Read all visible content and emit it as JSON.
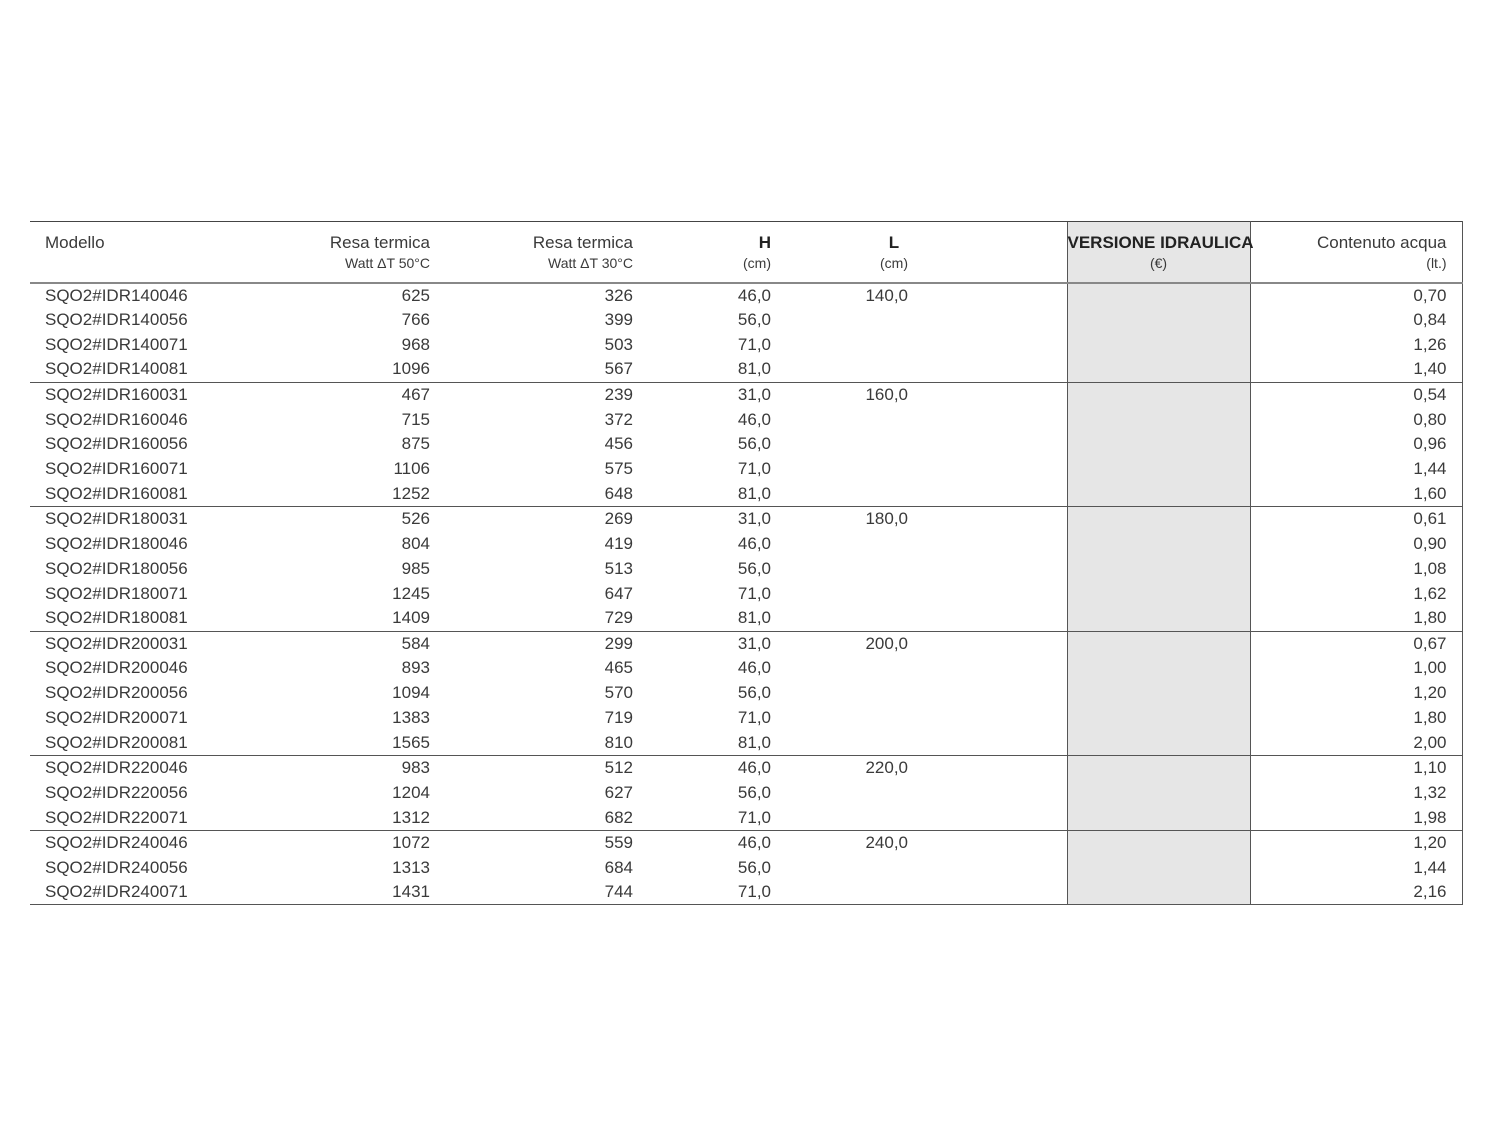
{
  "headers": {
    "model": "Modello",
    "resa50": {
      "title": "Resa termica",
      "sub": "Watt ΔT 50°C"
    },
    "resa30": {
      "title": "Resa termica",
      "sub": "Watt ΔT 30°C"
    },
    "h": {
      "title": "H",
      "sub": "(cm)"
    },
    "l": {
      "title": "L",
      "sub": "(cm)"
    },
    "versione": {
      "title": "VERSIONE IDRAULICA",
      "sub": "(€)"
    },
    "contenuto": {
      "title": "Contenuto acqua",
      "sub": "(lt.)"
    }
  },
  "colors": {
    "highlight_column": "#e6e6e6"
  },
  "groups": [
    {
      "l": "140,0",
      "rows": [
        [
          "SQO2#IDR140046",
          "625",
          "326",
          "46,0",
          "0,70"
        ],
        [
          "SQO2#IDR140056",
          "766",
          "399",
          "56,0",
          "0,84"
        ],
        [
          "SQO2#IDR140071",
          "968",
          "503",
          "71,0",
          "1,26"
        ],
        [
          "SQO2#IDR140081",
          "1096",
          "567",
          "81,0",
          "1,40"
        ]
      ]
    },
    {
      "l": "160,0",
      "rows": [
        [
          "SQO2#IDR160031",
          "467",
          "239",
          "31,0",
          "0,54"
        ],
        [
          "SQO2#IDR160046",
          "715",
          "372",
          "46,0",
          "0,80"
        ],
        [
          "SQO2#IDR160056",
          "875",
          "456",
          "56,0",
          "0,96"
        ],
        [
          "SQO2#IDR160071",
          "1106",
          "575",
          "71,0",
          "1,44"
        ],
        [
          "SQO2#IDR160081",
          "1252",
          "648",
          "81,0",
          "1,60"
        ]
      ]
    },
    {
      "l": "180,0",
      "rows": [
        [
          "SQO2#IDR180031",
          "526",
          "269",
          "31,0",
          "0,61"
        ],
        [
          "SQO2#IDR180046",
          "804",
          "419",
          "46,0",
          "0,90"
        ],
        [
          "SQO2#IDR180056",
          "985",
          "513",
          "56,0",
          "1,08"
        ],
        [
          "SQO2#IDR180071",
          "1245",
          "647",
          "71,0",
          "1,62"
        ],
        [
          "SQO2#IDR180081",
          "1409",
          "729",
          "81,0",
          "1,80"
        ]
      ]
    },
    {
      "l": "200,0",
      "rows": [
        [
          "SQO2#IDR200031",
          "584",
          "299",
          "31,0",
          "0,67"
        ],
        [
          "SQO2#IDR200046",
          "893",
          "465",
          "46,0",
          "1,00"
        ],
        [
          "SQO2#IDR200056",
          "1094",
          "570",
          "56,0",
          "1,20"
        ],
        [
          "SQO2#IDR200071",
          "1383",
          "719",
          "71,0",
          "1,80"
        ],
        [
          "SQO2#IDR200081",
          "1565",
          "810",
          "81,0",
          "2,00"
        ]
      ]
    },
    {
      "l": "220,0",
      "rows": [
        [
          "SQO2#IDR220046",
          "983",
          "512",
          "46,0",
          "1,10"
        ],
        [
          "SQO2#IDR220056",
          "1204",
          "627",
          "56,0",
          "1,32"
        ],
        [
          "SQO2#IDR220071",
          "1312",
          "682",
          "71,0",
          "1,98"
        ]
      ]
    },
    {
      "l": "240,0",
      "rows": [
        [
          "SQO2#IDR240046",
          "1072",
          "559",
          "46,0",
          "1,20"
        ],
        [
          "SQO2#IDR240056",
          "1313",
          "684",
          "56,0",
          "1,44"
        ],
        [
          "SQO2#IDR240071",
          "1431",
          "744",
          "71,0",
          "2,16"
        ]
      ]
    }
  ]
}
